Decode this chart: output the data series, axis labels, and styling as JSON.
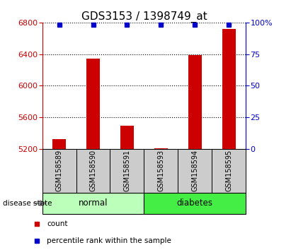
{
  "title": "GDS3153 / 1398749_at",
  "samples": [
    "GSM158589",
    "GSM158590",
    "GSM158591",
    "GSM158593",
    "GSM158594",
    "GSM158595"
  ],
  "counts": [
    5320,
    6340,
    5490,
    5210,
    6390,
    6715
  ],
  "percentiles": [
    98,
    98,
    98,
    98,
    98,
    98
  ],
  "ylim_left": [
    5200,
    6800
  ],
  "ylim_right": [
    0,
    100
  ],
  "yticks_left": [
    5200,
    5600,
    6000,
    6400,
    6800
  ],
  "yticks_right": [
    0,
    25,
    50,
    75,
    100
  ],
  "bar_color": "#cc0000",
  "percentile_color": "#0000cc",
  "bar_bottom": 5200,
  "groups": [
    {
      "label": "normal",
      "indices": [
        0,
        1,
        2
      ],
      "color": "#bbffbb"
    },
    {
      "label": "diabetes",
      "indices": [
        3,
        4,
        5
      ],
      "color": "#44ee44"
    }
  ],
  "group_label": "disease state",
  "legend_items": [
    {
      "color": "#cc0000",
      "label": "count"
    },
    {
      "color": "#0000cc",
      "label": "percentile rank within the sample"
    }
  ],
  "xticklabel_box_color": "#cccccc",
  "title_fontsize": 11,
  "tick_fontsize": 8,
  "bar_width": 0.4
}
